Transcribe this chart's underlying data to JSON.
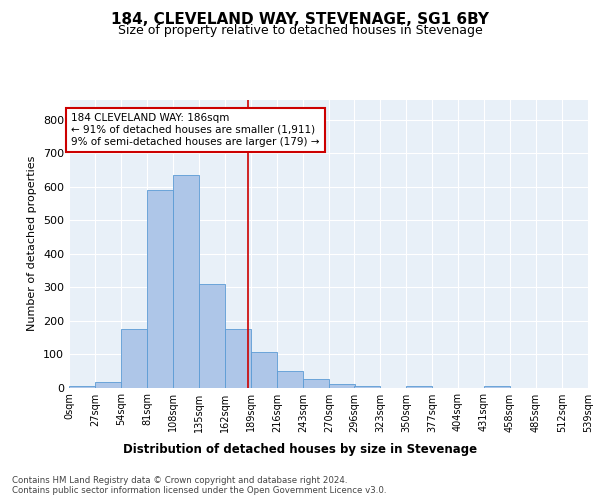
{
  "title": "184, CLEVELAND WAY, STEVENAGE, SG1 6BY",
  "subtitle": "Size of property relative to detached houses in Stevenage",
  "xlabel": "Distribution of detached houses by size in Stevenage",
  "ylabel": "Number of detached properties",
  "bar_color": "#aec6e8",
  "bar_edge_color": "#5b9bd5",
  "background_color": "#e8f0f8",
  "grid_color": "#ffffff",
  "vline_x": 186,
  "vline_color": "#cc0000",
  "annotation_text": "184 CLEVELAND WAY: 186sqm\n← 91% of detached houses are smaller (1,911)\n9% of semi-detached houses are larger (179) →",
  "annotation_box_color": "#ffffff",
  "annotation_box_edge": "#cc0000",
  "footer_text": "Contains HM Land Registry data © Crown copyright and database right 2024.\nContains public sector information licensed under the Open Government Licence v3.0.",
  "bin_edges": [
    0,
    27,
    54,
    81,
    108,
    135,
    162,
    189,
    216,
    243,
    270,
    296,
    323,
    350,
    377,
    404,
    431,
    458,
    485,
    512,
    539
  ],
  "bin_counts": [
    5,
    15,
    175,
    590,
    635,
    310,
    175,
    105,
    50,
    25,
    10,
    5,
    0,
    5,
    0,
    0,
    5,
    0,
    0,
    0
  ],
  "ylim": [
    0,
    860
  ],
  "yticks": [
    0,
    100,
    200,
    300,
    400,
    500,
    600,
    700,
    800
  ],
  "tick_labels": [
    "0sqm",
    "27sqm",
    "54sqm",
    "81sqm",
    "108sqm",
    "135sqm",
    "162sqm",
    "189sqm",
    "216sqm",
    "243sqm",
    "270sqm",
    "296sqm",
    "323sqm",
    "350sqm",
    "377sqm",
    "404sqm",
    "431sqm",
    "458sqm",
    "485sqm",
    "512sqm",
    "539sqm"
  ]
}
